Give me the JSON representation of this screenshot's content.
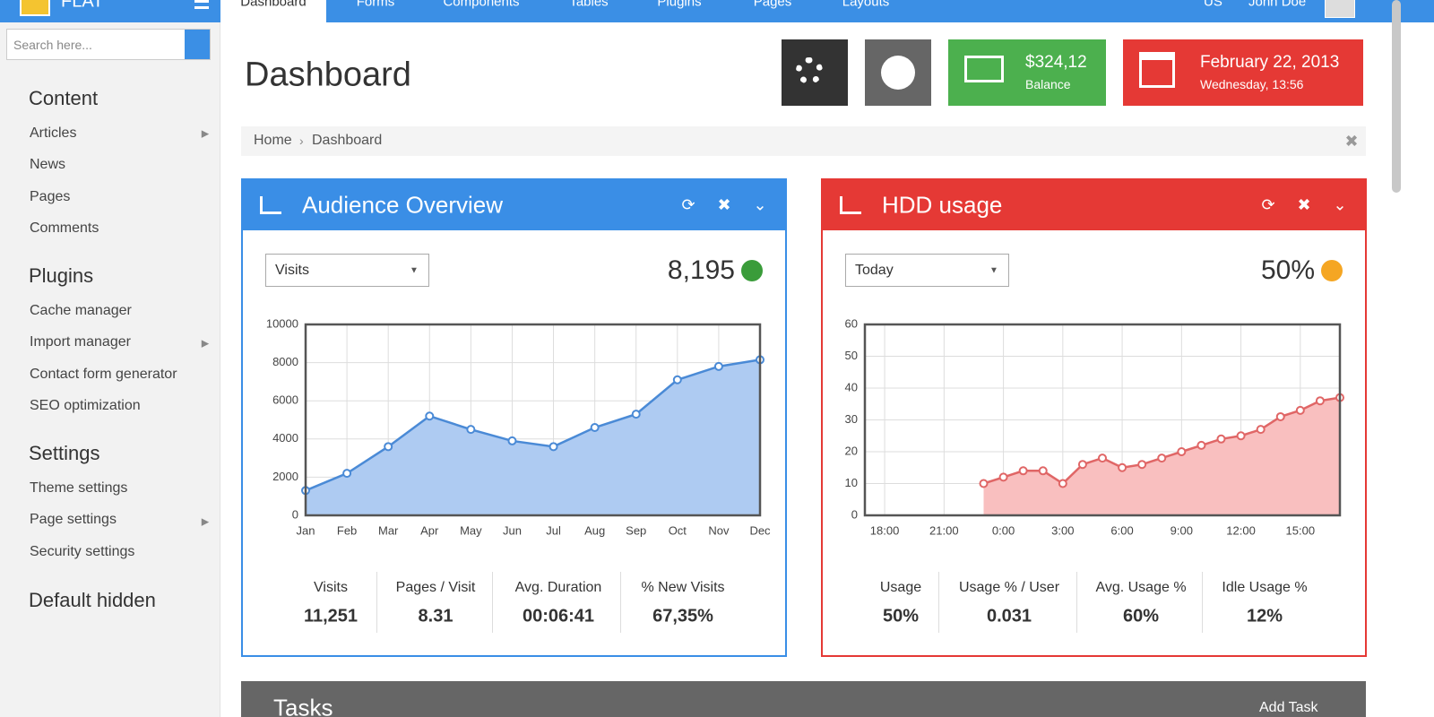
{
  "header": {
    "logo": "FLAT",
    "nav": [
      "Dashboard",
      "Forms",
      "Components",
      "Tables",
      "Plugins",
      "Pages",
      "Layouts"
    ],
    "language": "US",
    "user": "John Doe"
  },
  "sidebar": {
    "search_placeholder": "Search here...",
    "sections": [
      {
        "title": "Content",
        "items": [
          "Articles",
          "News",
          "Pages",
          "Comments"
        ]
      },
      {
        "title": "Plugins",
        "items": [
          "Cache manager",
          "Import manager",
          "Contact form generator",
          "SEO optimization"
        ]
      },
      {
        "title": "Settings",
        "items": [
          "Theme settings",
          "Page settings",
          "Security settings"
        ]
      },
      {
        "title": "Default hidden",
        "items": []
      }
    ]
  },
  "page": {
    "title": "Dashboard",
    "balance": {
      "amount": "$324,12",
      "label": "Balance"
    },
    "date": {
      "date": "February 22, 2013",
      "time": "Wednesday, 13:56"
    },
    "breadcrumb": [
      "Home",
      "Dashboard"
    ]
  },
  "widgets": [
    {
      "title": "Audience Overview",
      "select": "Visits",
      "total": "8,195",
      "stats": [
        {
          "label": "Visits",
          "value": "11,251"
        },
        {
          "label": "Pages / Visit",
          "value": "8.31"
        },
        {
          "label": "Avg. Duration",
          "value": "00:06:41"
        },
        {
          "label": "% New Visits",
          "value": "67,35%"
        }
      ]
    },
    {
      "title": "HDD usage",
      "select": "Today",
      "total": "50%",
      "stats": [
        {
          "label": "Usage",
          "value": "50%"
        },
        {
          "label": "Usage % / User",
          "value": "0.031"
        },
        {
          "label": "Avg. Usage %",
          "value": "60%"
        },
        {
          "label": "Idle Usage %",
          "value": "12%"
        }
      ]
    }
  ],
  "tasks": {
    "title": "Tasks",
    "action": "Add Task"
  },
  "chart_data": [
    {
      "type": "area",
      "categories": [
        "Jan",
        "Feb",
        "Mar",
        "Apr",
        "May",
        "Jun",
        "Jul",
        "Aug",
        "Sep",
        "Oct",
        "Nov",
        "Dec"
      ],
      "values": [
        1300,
        2200,
        3600,
        5200,
        4500,
        3900,
        3600,
        4600,
        5300,
        7100,
        7800,
        8150
      ],
      "color": "#4a8ad6",
      "fill": "#aecbf2",
      "ylim": [
        0,
        10000
      ],
      "yticks": [
        0,
        2000,
        4000,
        6000,
        8000,
        10000
      ],
      "grid": true
    },
    {
      "type": "area",
      "x": [
        -1,
        0,
        1,
        2,
        3,
        4,
        5,
        6,
        7,
        8,
        9,
        10,
        11,
        12,
        13,
        14,
        15,
        16,
        17
      ],
      "values": [
        10,
        12,
        14,
        14,
        10,
        16,
        18,
        15,
        16,
        18,
        20,
        22,
        24,
        25,
        27,
        31,
        33,
        36,
        37
      ],
      "color": "#e06666",
      "fill": "#f9bfbf",
      "xlim": [
        -7,
        17
      ],
      "xticks": [
        {
          "value": -6,
          "label": "18:00"
        },
        {
          "value": -3,
          "label": "21:00"
        },
        {
          "value": 0,
          "label": "0:00"
        },
        {
          "value": 3,
          "label": "3:00"
        },
        {
          "value": 6,
          "label": "6:00"
        },
        {
          "value": 9,
          "label": "9:00"
        },
        {
          "value": 12,
          "label": "12:00"
        },
        {
          "value": 15,
          "label": "15:00"
        }
      ],
      "ylim": [
        0,
        60
      ],
      "yticks": [
        0,
        10,
        20,
        30,
        40,
        50,
        60
      ],
      "grid": true
    }
  ]
}
